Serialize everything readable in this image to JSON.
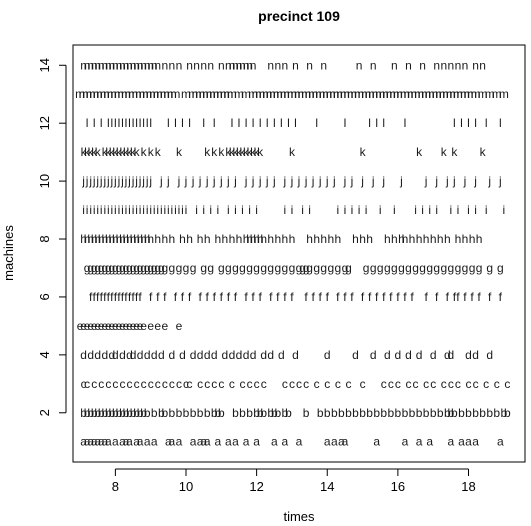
{
  "chart_data": {
    "type": "scatter",
    "title": "precinct 109",
    "xlabel": "times",
    "ylabel": "machines",
    "xlim": [
      6.8,
      19.6
    ],
    "ylim": [
      0.3,
      14.7
    ],
    "xticks": [
      8,
      10,
      12,
      14,
      16,
      18
    ],
    "yticks": [
      2,
      4,
      6,
      8,
      10,
      12,
      14
    ],
    "grid": false,
    "legend": "none",
    "marker": "letter",
    "series": [
      {
        "symbol": "a",
        "y": 1,
        "x": [
          7.1,
          7.2,
          7.3,
          7.4,
          7.5,
          7.6,
          7.7,
          7.8,
          8.0,
          8.2,
          8.3,
          8.4,
          8.6,
          8.7,
          8.9,
          9.1,
          9.5,
          9.6,
          9.8,
          10.2,
          10.4,
          10.5,
          10.6,
          10.9,
          11.2,
          11.4,
          11.7,
          12.0,
          12.5,
          12.8,
          13.2,
          14.0,
          14.2,
          14.4,
          14.5,
          15.4,
          16.2,
          16.6,
          16.9,
          17.5,
          17.8,
          18.0,
          18.2,
          18.9
        ]
      },
      {
        "symbol": "b",
        "y": 2,
        "x": [
          7.1,
          7.2,
          7.3,
          7.4,
          7.5,
          7.6,
          7.7,
          7.8,
          7.9,
          8.0,
          8.1,
          8.2,
          8.3,
          8.4,
          8.5,
          8.6,
          8.7,
          8.8,
          8.9,
          9.1,
          9.3,
          9.4,
          9.6,
          9.8,
          10.0,
          10.2,
          10.4,
          10.6,
          10.8,
          10.9,
          11.0,
          11.4,
          11.6,
          11.8,
          12.0,
          12.1,
          12.2,
          12.4,
          12.5,
          12.6,
          12.8,
          12.9,
          13.4,
          13.8,
          14.0,
          14.2,
          14.4,
          14.6,
          14.8,
          15.0,
          15.2,
          15.4,
          15.6,
          15.8,
          16.0,
          16.2,
          16.4,
          16.6,
          16.8,
          17.0,
          17.2,
          17.4,
          17.5,
          17.6,
          17.8,
          18.0,
          18.2,
          18.4,
          18.6,
          18.8,
          19.0,
          19.1
        ]
      },
      {
        "symbol": "c",
        "y": 3,
        "x": [
          7.1,
          7.2,
          7.4,
          7.6,
          7.8,
          8.0,
          8.2,
          8.4,
          8.6,
          8.8,
          9.0,
          9.2,
          9.4,
          9.6,
          9.8,
          10.0,
          10.1,
          10.4,
          10.6,
          10.8,
          11.0,
          11.3,
          11.6,
          11.8,
          12.0,
          12.2,
          12.8,
          13.0,
          13.2,
          13.4,
          13.7,
          14.0,
          14.3,
          14.6,
          15.0,
          15.6,
          15.8,
          16.0,
          16.3,
          16.5,
          16.8,
          17.0,
          17.3,
          17.5,
          17.7,
          18.0,
          18.2,
          18.5,
          18.8,
          19.1
        ]
      },
      {
        "symbol": "d",
        "y": 4,
        "x": [
          7.1,
          7.3,
          7.5,
          7.7,
          7.9,
          8.0,
          8.2,
          8.4,
          8.5,
          8.7,
          8.9,
          9.1,
          9.3,
          9.6,
          9.9,
          10.2,
          10.4,
          10.6,
          10.8,
          11.1,
          11.3,
          11.5,
          11.7,
          11.9,
          12.2,
          12.4,
          12.7,
          13.1,
          14.0,
          14.8,
          15.3,
          15.7,
          16.0,
          16.3,
          16.6,
          17.0,
          17.4,
          17.5,
          18.0,
          18.2,
          18.6
        ]
      },
      {
        "symbol": "e",
        "y": 5,
        "x": [
          7.0,
          7.1,
          7.2,
          7.3,
          7.4,
          7.5,
          7.6,
          7.7,
          7.8,
          7.9,
          8.0,
          8.1,
          8.2,
          8.3,
          8.4,
          8.5,
          8.6,
          8.7,
          8.8,
          9.0,
          9.2,
          9.4,
          9.8
        ]
      },
      {
        "symbol": "f",
        "y": 6,
        "x": [
          7.3,
          7.4,
          7.5,
          7.6,
          7.7,
          7.8,
          7.9,
          8.0,
          8.1,
          8.2,
          8.3,
          8.4,
          8.5,
          8.6,
          8.7,
          9.0,
          9.2,
          9.4,
          9.7,
          9.9,
          10.1,
          10.4,
          10.6,
          10.8,
          11.0,
          11.2,
          11.4,
          11.7,
          11.9,
          12.1,
          12.4,
          12.6,
          12.8,
          13.0,
          13.4,
          13.6,
          13.8,
          14.0,
          14.3,
          14.5,
          14.7,
          15.0,
          15.2,
          15.4,
          15.6,
          15.8,
          16.0,
          16.2,
          16.4,
          16.8,
          17.1,
          17.4,
          17.6,
          17.7,
          17.9,
          18.1,
          18.3,
          18.6,
          18.9
        ]
      },
      {
        "symbol": "g",
        "y": 7,
        "x": [
          7.2,
          7.3,
          7.4,
          7.5,
          7.6,
          7.7,
          7.8,
          7.9,
          8.0,
          8.1,
          8.2,
          8.3,
          8.4,
          8.5,
          8.6,
          8.7,
          8.8,
          8.9,
          9.0,
          9.1,
          9.2,
          9.3,
          9.4,
          9.6,
          9.8,
          10.0,
          10.2,
          10.5,
          10.7,
          11.0,
          11.2,
          11.4,
          11.6,
          11.8,
          12.0,
          12.2,
          12.4,
          12.6,
          12.8,
          13.0,
          13.2,
          13.3,
          13.4,
          13.5,
          13.7,
          13.9,
          14.1,
          14.3,
          14.5,
          14.6,
          15.1,
          15.3,
          15.5,
          15.7,
          15.9,
          16.1,
          16.3,
          16.5,
          16.7,
          16.9,
          17.1,
          17.3,
          17.5,
          17.7,
          17.9,
          18.1,
          18.3,
          18.6,
          18.9
        ]
      },
      {
        "symbol": "h",
        "y": 8,
        "x": [
          7.1,
          7.2,
          7.3,
          7.4,
          7.5,
          7.6,
          7.7,
          7.8,
          7.9,
          8.0,
          8.1,
          8.2,
          8.3,
          8.4,
          8.5,
          8.6,
          8.7,
          8.8,
          8.9,
          9.0,
          9.2,
          9.4,
          9.6,
          9.9,
          10.1,
          10.4,
          10.6,
          10.9,
          11.1,
          11.3,
          11.5,
          11.7,
          11.8,
          11.9,
          12.0,
          12.1,
          12.2,
          12.4,
          12.6,
          12.8,
          13.0,
          13.5,
          13.7,
          13.9,
          14.1,
          14.3,
          14.8,
          15.0,
          15.2,
          15.7,
          15.9,
          16.1,
          16.2,
          16.4,
          16.6,
          16.8,
          17.0,
          17.2,
          17.4,
          17.7,
          17.9,
          18.1,
          18.3
        ]
      },
      {
        "symbol": "i",
        "y": 9,
        "x": [
          7.1,
          7.2,
          7.3,
          7.4,
          7.5,
          7.6,
          7.7,
          7.8,
          7.9,
          8.0,
          8.1,
          8.2,
          8.3,
          8.4,
          8.5,
          8.6,
          8.7,
          8.8,
          8.9,
          9.0,
          9.1,
          9.2,
          9.3,
          9.4,
          9.5,
          9.6,
          9.7,
          9.8,
          9.9,
          10.0,
          10.3,
          10.5,
          10.7,
          10.9,
          11.2,
          11.4,
          11.6,
          11.8,
          12.0,
          12.8,
          13.0,
          13.3,
          13.5,
          14.3,
          14.5,
          14.7,
          14.9,
          15.1,
          15.5,
          15.9,
          16.5,
          16.7,
          16.9,
          17.1,
          17.5,
          17.7,
          18.0,
          18.2,
          18.5,
          19.0
        ]
      },
      {
        "symbol": "j",
        "y": 10,
        "x": [
          7.1,
          7.2,
          7.3,
          7.4,
          7.5,
          7.6,
          7.7,
          7.8,
          7.9,
          8.0,
          8.1,
          8.2,
          8.3,
          8.4,
          8.5,
          8.6,
          8.7,
          8.8,
          8.9,
          9.0,
          9.3,
          9.5,
          9.8,
          10.0,
          10.2,
          10.4,
          10.6,
          10.8,
          11.0,
          11.2,
          11.4,
          11.7,
          11.9,
          12.1,
          12.3,
          12.5,
          12.8,
          13.0,
          13.2,
          13.4,
          13.6,
          13.8,
          14.0,
          14.2,
          14.5,
          14.7,
          15.0,
          15.3,
          15.6,
          16.1,
          16.8,
          17.1,
          17.4,
          17.6,
          17.9,
          18.2,
          18.6,
          18.9
        ]
      },
      {
        "symbol": "k",
        "y": 11,
        "x": [
          7.1,
          7.2,
          7.3,
          7.4,
          7.5,
          7.7,
          7.8,
          7.9,
          8.0,
          8.1,
          8.2,
          8.3,
          8.4,
          8.5,
          8.6,
          8.8,
          9.0,
          9.2,
          9.8,
          10.6,
          10.8,
          11.0,
          11.2,
          11.3,
          11.4,
          11.5,
          11.6,
          11.7,
          11.8,
          11.9,
          12.0,
          12.1,
          13.0,
          15.0,
          16.6,
          17.3,
          17.6,
          18.4
        ]
      },
      {
        "symbol": "l",
        "y": 12,
        "x": [
          7.2,
          7.4,
          7.6,
          7.8,
          7.9,
          8.0,
          8.1,
          8.2,
          8.3,
          8.4,
          8.5,
          8.6,
          8.7,
          8.8,
          8.9,
          9.0,
          9.5,
          9.7,
          9.9,
          10.1,
          10.5,
          10.8,
          11.3,
          11.5,
          11.7,
          11.9,
          12.1,
          12.3,
          12.5,
          12.7,
          12.9,
          13.1,
          13.7,
          14.5,
          15.2,
          15.4,
          15.6,
          16.2,
          17.6,
          17.8,
          18.0,
          18.2,
          18.5,
          18.9
        ]
      },
      {
        "symbol": "m",
        "y": 13,
        "x": [
          7.0,
          7.1,
          7.2,
          7.3,
          7.4,
          7.5,
          7.6,
          7.7,
          7.8,
          7.9,
          8.0,
          8.1,
          8.2,
          8.3,
          8.4,
          8.5,
          8.6,
          8.7,
          8.8,
          8.9,
          9.0,
          9.1,
          9.2,
          9.3,
          9.4,
          9.5,
          9.6,
          9.7,
          10.0,
          10.2,
          10.3,
          10.4,
          10.5,
          10.6,
          10.7,
          10.8,
          10.9,
          11.0,
          11.1,
          11.2,
          11.3,
          11.5,
          11.7,
          11.9,
          12.0,
          12.1,
          12.2,
          12.3,
          12.4,
          12.5,
          12.6,
          12.7,
          12.8,
          12.9,
          13.0,
          13.1,
          13.2,
          13.3,
          13.4,
          13.5,
          13.6,
          13.7,
          13.8,
          13.9,
          14.0,
          14.1,
          14.2,
          14.3,
          14.4,
          14.5,
          14.6,
          14.7,
          14.8,
          14.9,
          15.0,
          15.1,
          15.2,
          15.3,
          15.4,
          15.5,
          15.6,
          15.7,
          15.8,
          15.9,
          16.0,
          16.1,
          16.2,
          16.3,
          16.4,
          16.5,
          16.6,
          16.7,
          16.8,
          16.9,
          17.0,
          17.1,
          17.2,
          17.3,
          17.4,
          17.5,
          17.6,
          17.7,
          17.8,
          17.9,
          18.0,
          18.1,
          18.2,
          18.4,
          18.6,
          18.8,
          19.0
        ]
      },
      {
        "symbol": "n",
        "y": 14,
        "x": [
          7.1,
          7.2,
          7.3,
          7.4,
          7.5,
          7.6,
          7.7,
          7.8,
          7.9,
          8.0,
          8.1,
          8.2,
          8.3,
          8.4,
          8.5,
          8.6,
          8.7,
          8.8,
          8.9,
          9.0,
          9.1,
          9.2,
          9.4,
          9.6,
          9.8,
          10.1,
          10.3,
          10.5,
          10.7,
          11.0,
          11.2,
          11.3,
          11.4,
          11.5,
          11.6,
          11.7,
          11.8,
          11.9,
          12.4,
          12.6,
          12.8,
          13.1,
          13.5,
          13.9,
          14.9,
          15.3,
          15.9,
          16.3,
          16.7,
          17.1,
          17.3,
          17.5,
          17.7,
          17.9,
          18.2,
          18.4
        ]
      }
    ]
  }
}
